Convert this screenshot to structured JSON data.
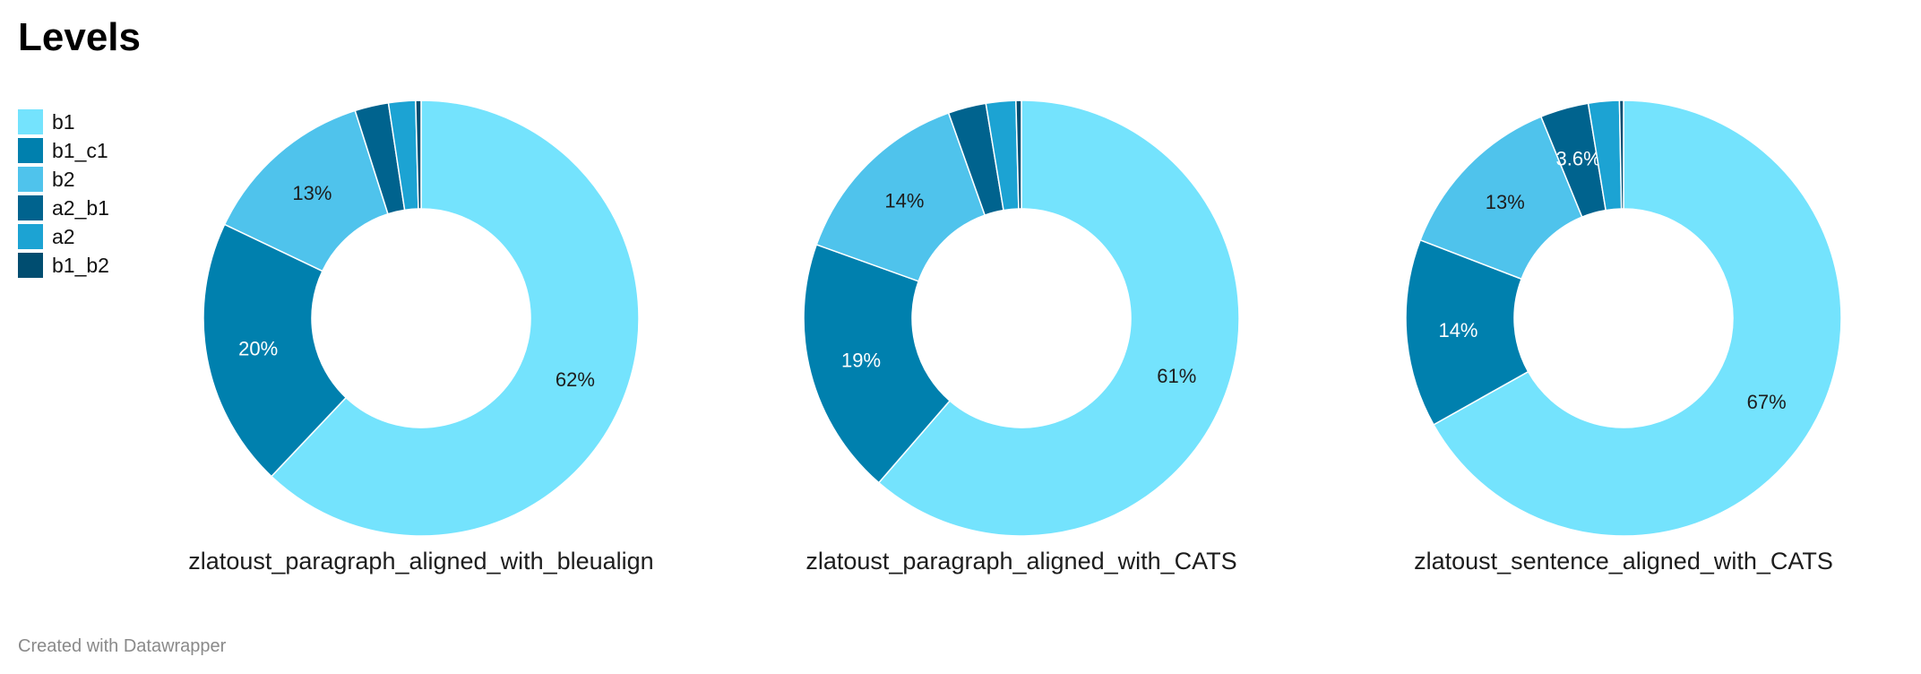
{
  "title": "Levels",
  "footer": "Created with Datawrapper",
  "legend": [
    {
      "label": "b1",
      "color": "#74e3fd"
    },
    {
      "label": "b1_c1",
      "color": "#0080ae"
    },
    {
      "label": "b2",
      "color": "#4fc3ec"
    },
    {
      "label": "a2_b1",
      "color": "#00638e"
    },
    {
      "label": "a2",
      "color": "#1ca3d3"
    },
    {
      "label": "b1_b2",
      "color": "#004d70"
    }
  ],
  "chart_data": [
    {
      "type": "pie",
      "variant": "donut",
      "title": "zlatoust_paragraph_aligned_with_bleualign",
      "slices": [
        {
          "label": "b1",
          "value": 62,
          "color": "#74e3fd",
          "display": "62%"
        },
        {
          "label": "b1_c1",
          "value": 20,
          "color": "#0080ae",
          "display": "20%"
        },
        {
          "label": "b2",
          "value": 13,
          "color": "#4fc3ec",
          "display": "13%"
        },
        {
          "label": "a2_b1",
          "value": 2.5,
          "color": "#00638e",
          "display": ""
        },
        {
          "label": "a2",
          "value": 2,
          "color": "#1ca3d3",
          "display": ""
        },
        {
          "label": "b1_b2",
          "value": 0.4,
          "color": "#004d70",
          "display": ""
        }
      ]
    },
    {
      "type": "pie",
      "variant": "donut",
      "title": "zlatoust_paragraph_aligned_with_CATS",
      "slices": [
        {
          "label": "b1",
          "value": 61,
          "color": "#74e3fd",
          "display": "61%"
        },
        {
          "label": "b1_c1",
          "value": 19,
          "color": "#0080ae",
          "display": "19%"
        },
        {
          "label": "b2",
          "value": 14,
          "color": "#4fc3ec",
          "display": "14%"
        },
        {
          "label": "a2_b1",
          "value": 2.8,
          "color": "#00638e",
          "display": ""
        },
        {
          "label": "a2",
          "value": 2.2,
          "color": "#1ca3d3",
          "display": ""
        },
        {
          "label": "b1_b2",
          "value": 0.4,
          "color": "#004d70",
          "display": ""
        }
      ]
    },
    {
      "type": "pie",
      "variant": "donut",
      "title": "zlatoust_sentence_aligned_with_CATS",
      "slices": [
        {
          "label": "b1",
          "value": 67,
          "color": "#74e3fd",
          "display": "67%"
        },
        {
          "label": "b1_c1",
          "value": 14,
          "color": "#0080ae",
          "display": "14%"
        },
        {
          "label": "b2",
          "value": 13,
          "color": "#4fc3ec",
          "display": "13%"
        },
        {
          "label": "a2_b1",
          "value": 3.6,
          "color": "#00638e",
          "display": "3.6%"
        },
        {
          "label": "a2",
          "value": 2.3,
          "color": "#1ca3d3",
          "display": ""
        },
        {
          "label": "b1_b2",
          "value": 0.3,
          "color": "#004d70",
          "display": ""
        }
      ]
    }
  ]
}
